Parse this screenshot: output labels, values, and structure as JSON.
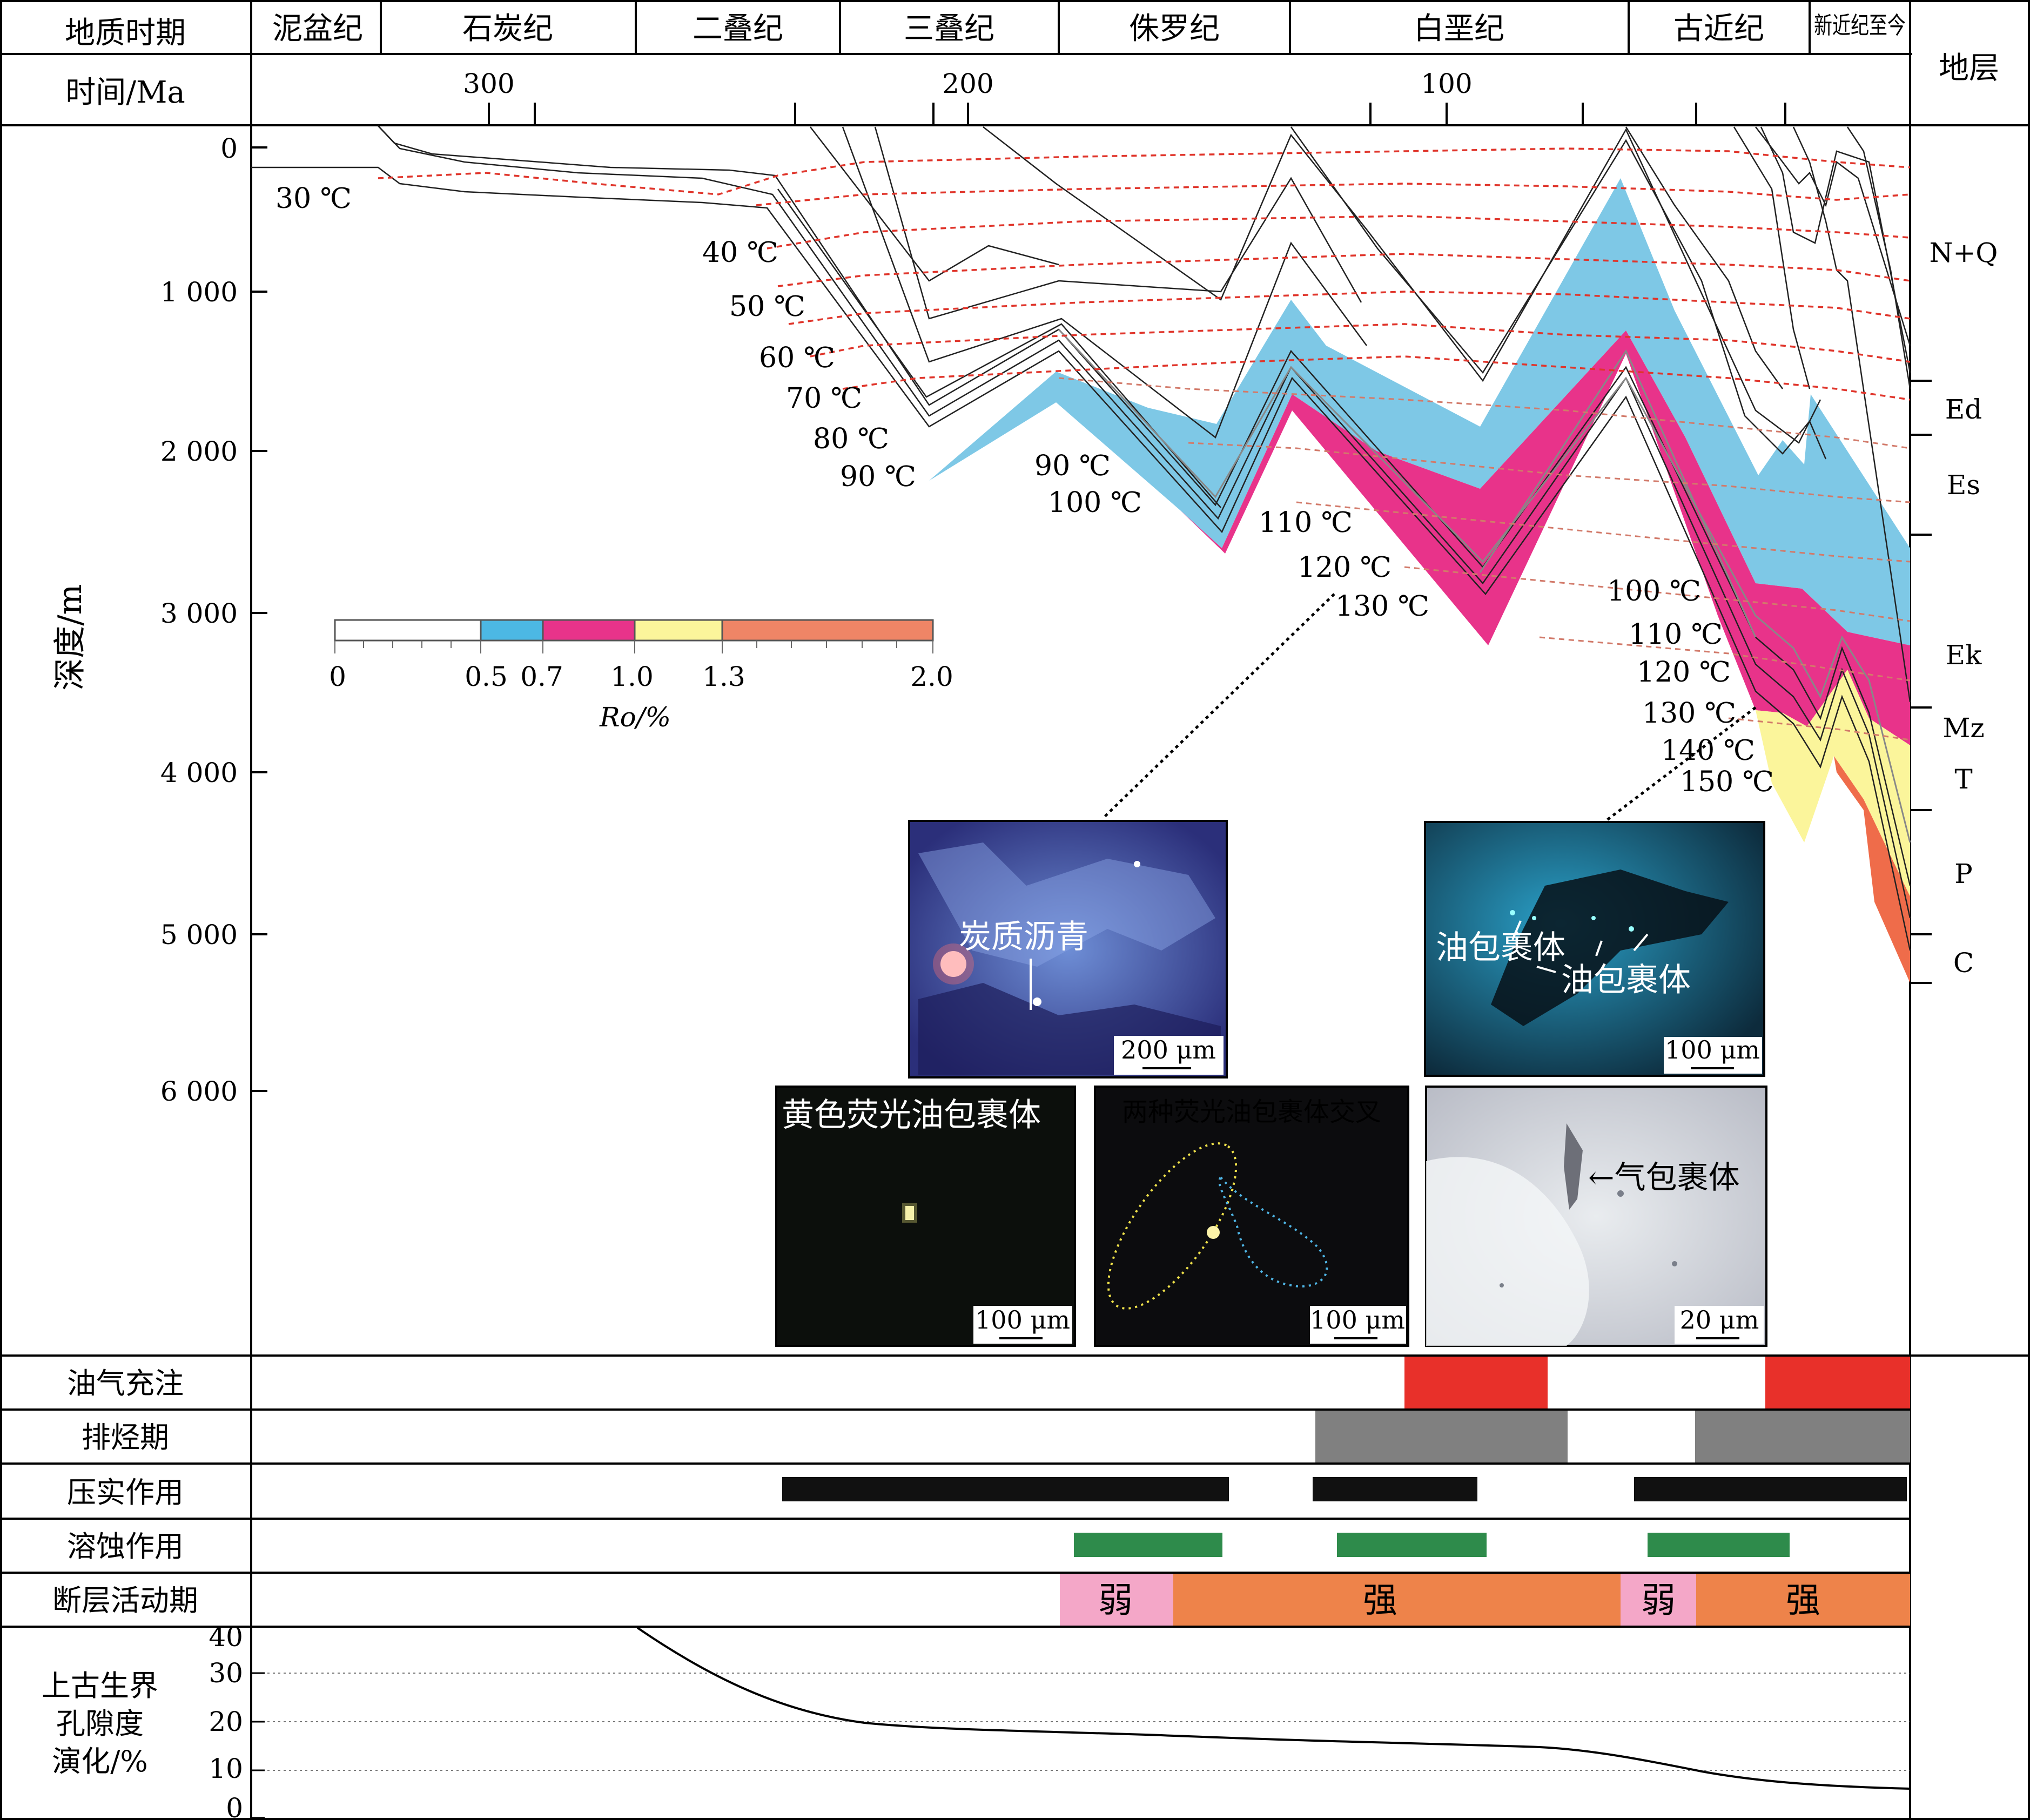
{
  "header": {
    "period_label": "地质时期",
    "time_label": "时间/Ma",
    "strata_label": "地层",
    "periods": [
      "泥盆纪",
      "石炭纪",
      "二叠纪",
      "三叠纪",
      "侏罗纪",
      "白垩纪",
      "古近纪",
      "新近纪至今"
    ],
    "ages": [
      "300",
      "200",
      "100"
    ]
  },
  "depth_axis": {
    "label": "深度/m",
    "ticks": [
      "0",
      "1 000",
      "2 000",
      "3 000",
      "4 000",
      "5 000",
      "6 000"
    ]
  },
  "strata": [
    "N+Q",
    "Ed",
    "Es",
    "Ek",
    "Mz",
    "T",
    "P",
    "C"
  ],
  "isotherms": {
    "left": [
      "30 ℃",
      "40 ℃",
      "50 ℃",
      "60 ℃",
      "70 ℃",
      "80 ℃",
      "90 ℃"
    ],
    "middle": [
      "90 ℃",
      "100 ℃",
      "110 ℃",
      "120 ℃",
      "130 ℃"
    ],
    "right": [
      "100 ℃",
      "110 ℃",
      "120 ℃",
      "130 ℃",
      "140 ℃",
      "150 ℃"
    ]
  },
  "ro_legend": {
    "label": "Ro/%",
    "ticks": [
      "0",
      "0.5",
      "0.7",
      "1.0",
      "1.3",
      "2.0"
    ],
    "colors": [
      "#ffffff",
      "#4cb8e4",
      "#e8338a",
      "#fbf59b",
      "#ef8566"
    ]
  },
  "photos": {
    "p1_label": "炭质沥青",
    "p1_scale": "200 μm",
    "p2_label1": "油包裹体",
    "p2_label2": "油包裹体",
    "p2_scale": "100 μm",
    "p3_label": "黄色荧光油包裹体",
    "p3_scale": "100 μm",
    "p4_label": "两种荧光油包裹体交叉",
    "p4_scale": "100 μm",
    "p5_label": "←气包裹体",
    "p5_scale": "20 μm"
  },
  "events": {
    "rows": [
      "油气充注",
      "排烃期",
      "压实作用",
      "溶蚀作用",
      "断层活动期"
    ],
    "fault_weak": "弱",
    "fault_strong": "强",
    "colors": {
      "charge": "#e8302a",
      "expulsion": "#808080",
      "compaction": "#111111",
      "dissolution": "#2e8b4b",
      "weak": "#f4a7c8",
      "strong": "#ee834a"
    }
  },
  "porosity": {
    "label_lines": [
      "上古生界",
      "孔隙度",
      "演化/%"
    ],
    "ticks": [
      "40",
      "30",
      "20",
      "10",
      "0"
    ]
  }
}
